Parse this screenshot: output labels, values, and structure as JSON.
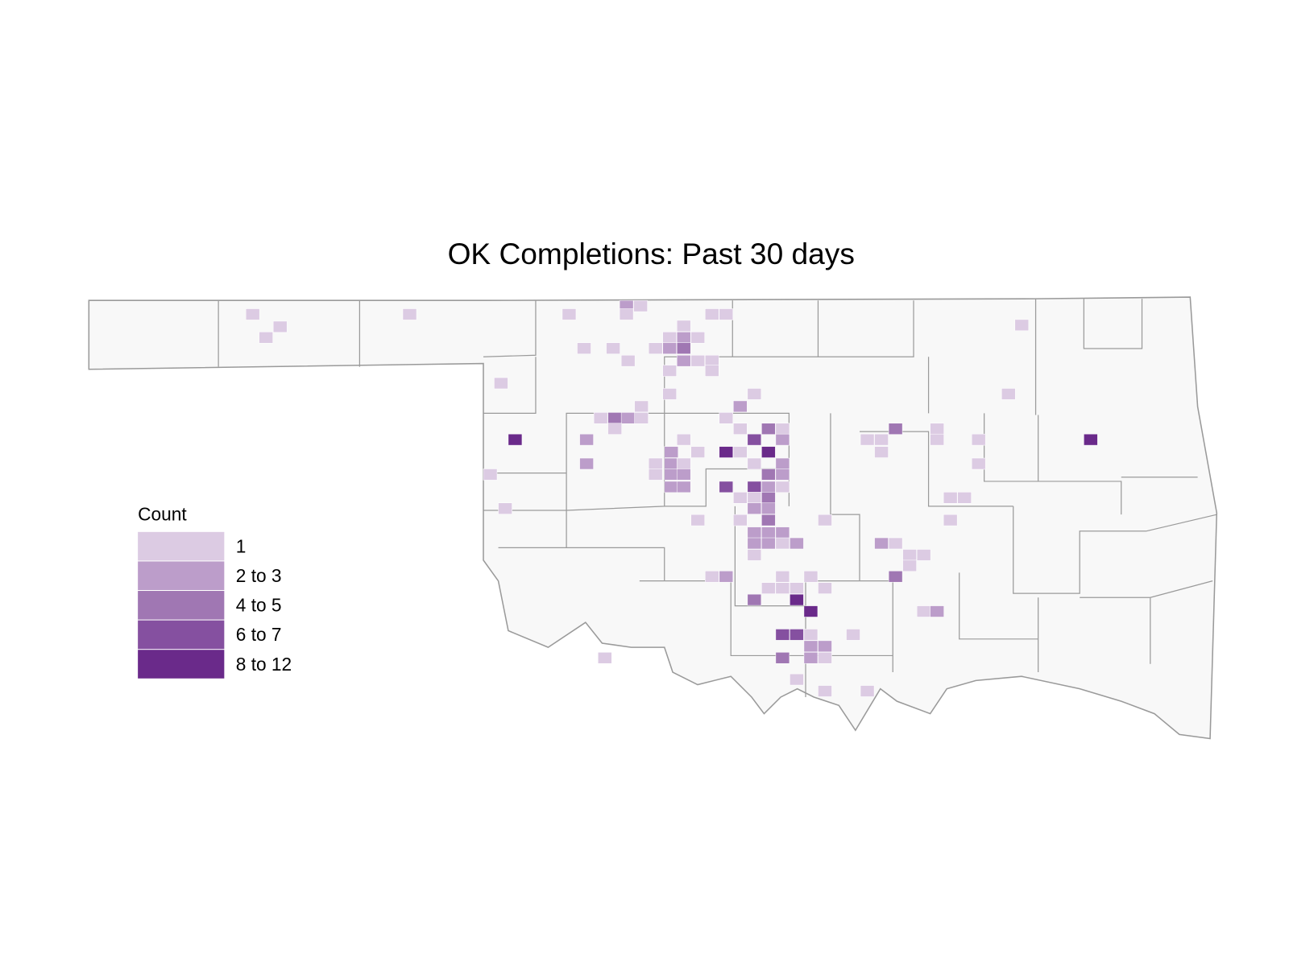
{
  "title": "OK Completions: Past 30 days",
  "legend": {
    "title": "Count",
    "items": [
      {
        "label": "1",
        "color": "#dccbe3"
      },
      {
        "label": "2 to 3",
        "color": "#bc9dca"
      },
      {
        "label": "4 to 5",
        "color": "#a077b3"
      },
      {
        "label": "6 to 7",
        "color": "#8550a0"
      },
      {
        "label": "8 to 12",
        "color": "#6a2a8a"
      }
    ]
  }
}
